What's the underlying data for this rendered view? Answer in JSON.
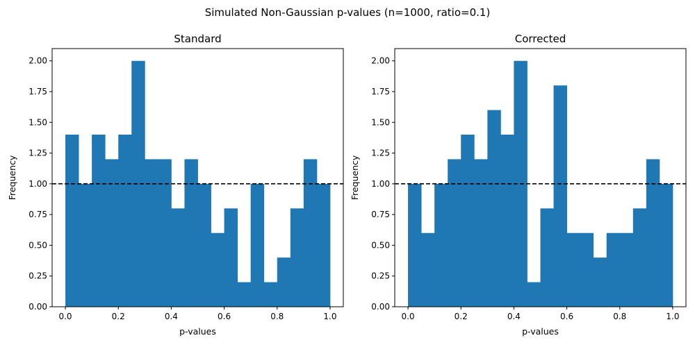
{
  "figure": {
    "suptitle": "Simulated Non-Gaussian p-values (n=1000, ratio=0.1)"
  },
  "chart_data": [
    {
      "type": "bar",
      "title": "Standard",
      "xlabel": "p-values",
      "ylabel": "Frequency",
      "bin_edges": [
        0.0,
        0.05,
        0.1,
        0.15,
        0.2,
        0.25,
        0.3,
        0.35,
        0.4,
        0.45,
        0.5,
        0.55,
        0.6,
        0.65,
        0.7,
        0.75,
        0.8,
        0.85,
        0.9,
        0.95,
        1.0
      ],
      "values": [
        1.4,
        1.0,
        1.4,
        1.2,
        1.4,
        2.0,
        1.2,
        1.2,
        0.8,
        1.2,
        1.0,
        0.6,
        0.8,
        0.2,
        1.0,
        0.2,
        0.4,
        0.8,
        1.2,
        1.0
      ],
      "reference_line": 1.0,
      "xlim": [
        -0.05,
        1.05
      ],
      "ylim": [
        0,
        2.1
      ],
      "xticks": [
        "0.0",
        "0.2",
        "0.4",
        "0.6",
        "0.8",
        "1.0"
      ],
      "yticks": [
        "0.00",
        "0.25",
        "0.50",
        "0.75",
        "1.00",
        "1.25",
        "1.50",
        "1.75",
        "2.00"
      ],
      "bar_color": "#1f77b4",
      "line_color": "#000000"
    },
    {
      "type": "bar",
      "title": "Corrected",
      "xlabel": "p-values",
      "ylabel": "Frequency",
      "bin_edges": [
        0.0,
        0.05,
        0.1,
        0.15,
        0.2,
        0.25,
        0.3,
        0.35,
        0.4,
        0.45,
        0.5,
        0.55,
        0.6,
        0.65,
        0.7,
        0.75,
        0.8,
        0.85,
        0.9,
        0.95,
        1.0
      ],
      "values": [
        1.0,
        0.6,
        1.0,
        1.2,
        1.4,
        1.2,
        1.6,
        1.4,
        2.0,
        0.2,
        0.8,
        1.8,
        0.6,
        0.6,
        0.4,
        0.6,
        0.6,
        0.8,
        1.2,
        1.0
      ],
      "reference_line": 1.0,
      "xlim": [
        -0.05,
        1.05
      ],
      "ylim": [
        0,
        2.1
      ],
      "xticks": [
        "0.0",
        "0.2",
        "0.4",
        "0.6",
        "0.8",
        "1.0"
      ],
      "yticks": [
        "0.00",
        "0.25",
        "0.50",
        "0.75",
        "1.00",
        "1.25",
        "1.50",
        "1.75",
        "2.00"
      ],
      "bar_color": "#1f77b4",
      "line_color": "#000000"
    }
  ]
}
